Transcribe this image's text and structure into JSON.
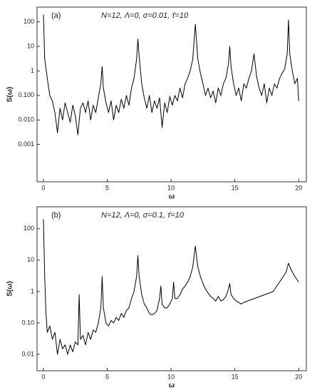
{
  "chart_data": [
    {
      "type": "line",
      "panel_label": "(a)",
      "title": "N=12, Λ=0, σ=0.01, τ̄=10",
      "xlabel": "ω",
      "ylabel": "S(ω)",
      "color": "#000000",
      "log_y": true,
      "xlim": [
        -0.5,
        20.6
      ],
      "ylim": [
        3e-05,
        400
      ],
      "xticks": [
        0,
        5,
        10,
        15,
        20
      ],
      "yticks": [
        {
          "value": 0.001,
          "label": "0.001"
        },
        {
          "value": 0.01,
          "label": "0.010"
        },
        {
          "value": 0.1,
          "label": "0.100"
        },
        1,
        10,
        100
      ],
      "x": [
        0,
        0.1,
        0.3,
        0.5,
        0.7,
        0.9,
        1.1,
        1.3,
        1.5,
        1.7,
        1.9,
        2.1,
        2.3,
        2.5,
        2.7,
        2.9,
        3.1,
        3.3,
        3.5,
        3.7,
        3.9,
        4.1,
        4.3,
        4.5,
        4.6,
        4.7,
        4.9,
        5.1,
        5.3,
        5.5,
        5.7,
        5.9,
        6.1,
        6.3,
        6.5,
        6.7,
        6.9,
        7.1,
        7.3,
        7.4,
        7.5,
        7.7,
        7.9,
        8.1,
        8.3,
        8.5,
        8.7,
        8.9,
        9.1,
        9.3,
        9.5,
        9.7,
        9.9,
        10.1,
        10.3,
        10.5,
        10.7,
        10.9,
        11.1,
        11.3,
        11.5,
        11.7,
        11.9,
        12.1,
        12.3,
        12.5,
        12.7,
        12.9,
        13.1,
        13.3,
        13.5,
        13.7,
        13.9,
        14.1,
        14.3,
        14.5,
        14.6,
        14.7,
        14.9,
        15.1,
        15.3,
        15.5,
        15.7,
        15.9,
        16.1,
        16.3,
        16.5,
        16.7,
        16.9,
        17.1,
        17.3,
        17.5,
        17.7,
        17.9,
        18.1,
        18.3,
        18.5,
        18.7,
        18.9,
        19.1,
        19.2,
        19.3,
        19.5,
        19.7,
        19.9,
        20
      ],
      "values": [
        200,
        3,
        0.5,
        0.1,
        0.06,
        0.02,
        0.003,
        0.03,
        0.01,
        0.05,
        0.02,
        0.008,
        0.04,
        0.015,
        0.0025,
        0.03,
        0.05,
        0.02,
        0.06,
        0.01,
        0.04,
        0.02,
        0.08,
        0.3,
        1.5,
        0.2,
        0.05,
        0.02,
        0.06,
        0.01,
        0.04,
        0.02,
        0.07,
        0.03,
        0.1,
        0.04,
        0.2,
        0.5,
        3,
        20,
        4,
        0.3,
        0.08,
        0.03,
        0.1,
        0.02,
        0.06,
        0.03,
        0.08,
        0.005,
        0.05,
        0.02,
        0.09,
        0.04,
        0.1,
        0.06,
        0.2,
        0.08,
        0.3,
        0.5,
        1,
        3,
        80,
        3,
        0.8,
        0.3,
        0.1,
        0.2,
        0.08,
        0.15,
        0.05,
        0.2,
        0.1,
        0.3,
        0.5,
        2,
        10,
        1.5,
        0.3,
        0.1,
        0.2,
        0.06,
        0.3,
        0.2,
        0.5,
        1,
        5,
        0.6,
        0.2,
        0.1,
        0.3,
        0.05,
        0.2,
        0.1,
        0.3,
        0.2,
        0.5,
        0.8,
        1.2,
        5,
        120,
        5,
        1,
        0.3,
        0.5,
        0.06
      ]
    },
    {
      "type": "line",
      "panel_label": "(b)",
      "title": "N=12, Λ=0, σ=0.1, τ̄=10",
      "xlabel": "ω",
      "ylabel": "S(ω)",
      "color": "#000000",
      "log_y": true,
      "xlim": [
        -0.5,
        20.6
      ],
      "ylim": [
        0.003,
        500
      ],
      "xticks": [
        0,
        5,
        10,
        15,
        20
      ],
      "yticks": [
        0.01,
        {
          "value": 0.1,
          "label": "0.10"
        },
        1,
        10,
        100
      ],
      "x": [
        0,
        0.1,
        0.2,
        0.3,
        0.5,
        0.7,
        0.9,
        1.1,
        1.3,
        1.5,
        1.7,
        1.9,
        2.1,
        2.3,
        2.5,
        2.7,
        2.8,
        2.9,
        3.1,
        3.3,
        3.5,
        3.7,
        3.9,
        4.1,
        4.3,
        4.5,
        4.6,
        4.7,
        4.9,
        5.1,
        5.3,
        5.5,
        5.7,
        5.9,
        6.1,
        6.3,
        6.5,
        6.7,
        6.9,
        7.1,
        7.3,
        7.4,
        7.5,
        7.7,
        7.9,
        8.1,
        8.3,
        8.5,
        8.7,
        8.9,
        9.1,
        9.2,
        9.3,
        9.5,
        9.7,
        9.9,
        10.1,
        10.2,
        10.3,
        10.5,
        10.7,
        10.9,
        11.1,
        11.3,
        11.5,
        11.7,
        11.9,
        12.1,
        12.3,
        12.5,
        12.7,
        12.9,
        13.1,
        13.3,
        13.5,
        13.7,
        13.9,
        14.1,
        14.3,
        14.5,
        14.6,
        14.7,
        14.9,
        15.1,
        15.3,
        15.5,
        15.7,
        16,
        18,
        18.5,
        19,
        19.2,
        19.4,
        19.7,
        20
      ],
      "values": [
        200,
        3,
        0.2,
        0.05,
        0.08,
        0.03,
        0.05,
        0.01,
        0.03,
        0.015,
        0.02,
        0.01,
        0.02,
        0.012,
        0.025,
        0.02,
        0.8,
        0.03,
        0.04,
        0.02,
        0.05,
        0.03,
        0.06,
        0.05,
        0.1,
        0.3,
        3,
        0.3,
        0.1,
        0.08,
        0.12,
        0.1,
        0.15,
        0.12,
        0.2,
        0.15,
        0.25,
        0.3,
        0.6,
        1,
        3,
        14,
        3,
        0.8,
        0.4,
        0.3,
        0.2,
        0.18,
        0.2,
        0.25,
        0.6,
        1.5,
        0.4,
        0.3,
        0.3,
        0.4,
        0.6,
        2,
        0.6,
        0.6,
        0.8,
        1.2,
        1.5,
        2,
        3,
        6,
        28,
        6,
        3,
        1.8,
        1.2,
        0.9,
        0.7,
        0.6,
        0.5,
        0.7,
        0.5,
        0.55,
        0.7,
        1.2,
        1.8,
        0.8,
        0.6,
        0.5,
        0.45,
        0.4,
        0.45,
        0.5,
        1,
        2,
        4,
        8,
        5,
        3,
        2
      ]
    }
  ]
}
